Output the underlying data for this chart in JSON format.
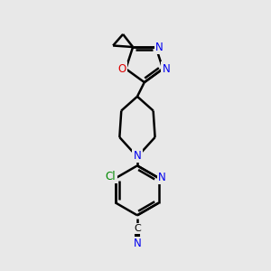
{
  "bg_color": "#e8e8e8",
  "bond_color": "#000000",
  "bond_width": 1.8,
  "atom_colors": {
    "N": "#0000ee",
    "O": "#dd0000",
    "Cl": "#008800",
    "C": "#000000"
  },
  "figsize": [
    3.0,
    3.0
  ],
  "dpi": 100,
  "N_fs": 8.5,
  "O_fs": 8.5,
  "Cl_fs": 8.5,
  "C_fs": 8.0
}
